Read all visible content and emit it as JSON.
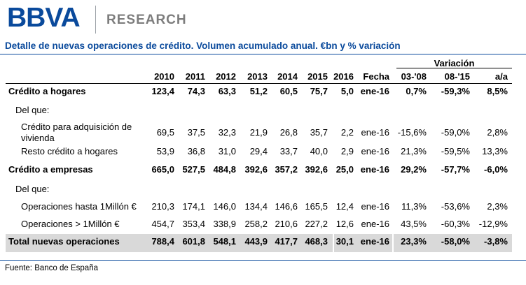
{
  "brand": {
    "logo": "BBVA",
    "division": "RESEARCH"
  },
  "title": "Detalle de nuevas operaciones de crédito. Volumen acumulado anual. €bn y % variación",
  "table": {
    "variacion_label": "Variación",
    "columns": [
      "",
      "2010",
      "2011",
      "2012",
      "2013",
      "2014",
      "2015",
      "2016",
      "Fecha",
      "03-'08",
      "08-'15",
      "a/a"
    ],
    "rows": [
      {
        "label": "Crédito a hogares",
        "style": "bold",
        "values": [
          "123,4",
          "74,3",
          "63,3",
          "51,2",
          "60,5",
          "75,7",
          "5,0",
          "ene-16",
          "0,7%",
          "-59,3%",
          "8,5%"
        ]
      },
      {
        "label": "Del que:",
        "style": "sub",
        "values": []
      },
      {
        "label": "Crédito para adquisición de",
        "label2": "vivienda",
        "style": "indent",
        "values": [
          "69,5",
          "37,5",
          "32,3",
          "21,9",
          "26,8",
          "35,7",
          "2,2",
          "ene-16",
          "-15,6%",
          "-59,0%",
          "2,8%"
        ]
      },
      {
        "label": "Resto crédito a hogares",
        "style": "indent",
        "values": [
          "53,9",
          "36,8",
          "31,0",
          "29,4",
          "33,7",
          "40,0",
          "2,9",
          "ene-16",
          "21,3%",
          "-59,5%",
          "13,3%"
        ]
      },
      {
        "label": "Crédito a empresas",
        "style": "bold",
        "values": [
          "665,0",
          "527,5",
          "484,8",
          "392,6",
          "357,2",
          "392,6",
          "25,0",
          "ene-16",
          "29,2%",
          "-57,7%",
          "-6,0%"
        ]
      },
      {
        "label": "Del que:",
        "style": "sub",
        "values": []
      },
      {
        "label": "Operaciones hasta 1Millón €",
        "style": "indent",
        "values": [
          "210,3",
          "174,1",
          "146,0",
          "134,4",
          "146,6",
          "165,5",
          "12,4",
          "ene-16",
          "11,3%",
          "-53,6%",
          "2,3%"
        ]
      },
      {
        "label": "Operaciones > 1Millón €",
        "style": "indent",
        "values": [
          "454,7",
          "353,4",
          "338,9",
          "258,2",
          "210,6",
          "227,2",
          "12,6",
          "ene-16",
          "43,5%",
          "-60,3%",
          "-12,9%"
        ]
      },
      {
        "label": "Total nuevas operaciones",
        "style": "total",
        "values": [
          "788,4",
          "601,8",
          "548,1",
          "443,9",
          "417,7",
          "468,3",
          "30,1",
          "ene-16",
          "23,3%",
          "-58,0%",
          "-3,8%"
        ]
      }
    ]
  },
  "source": "Fuente: Banco de España",
  "colors": {
    "brand_blue": "#0a4a9c",
    "total_bg": "#d9d9d9"
  }
}
